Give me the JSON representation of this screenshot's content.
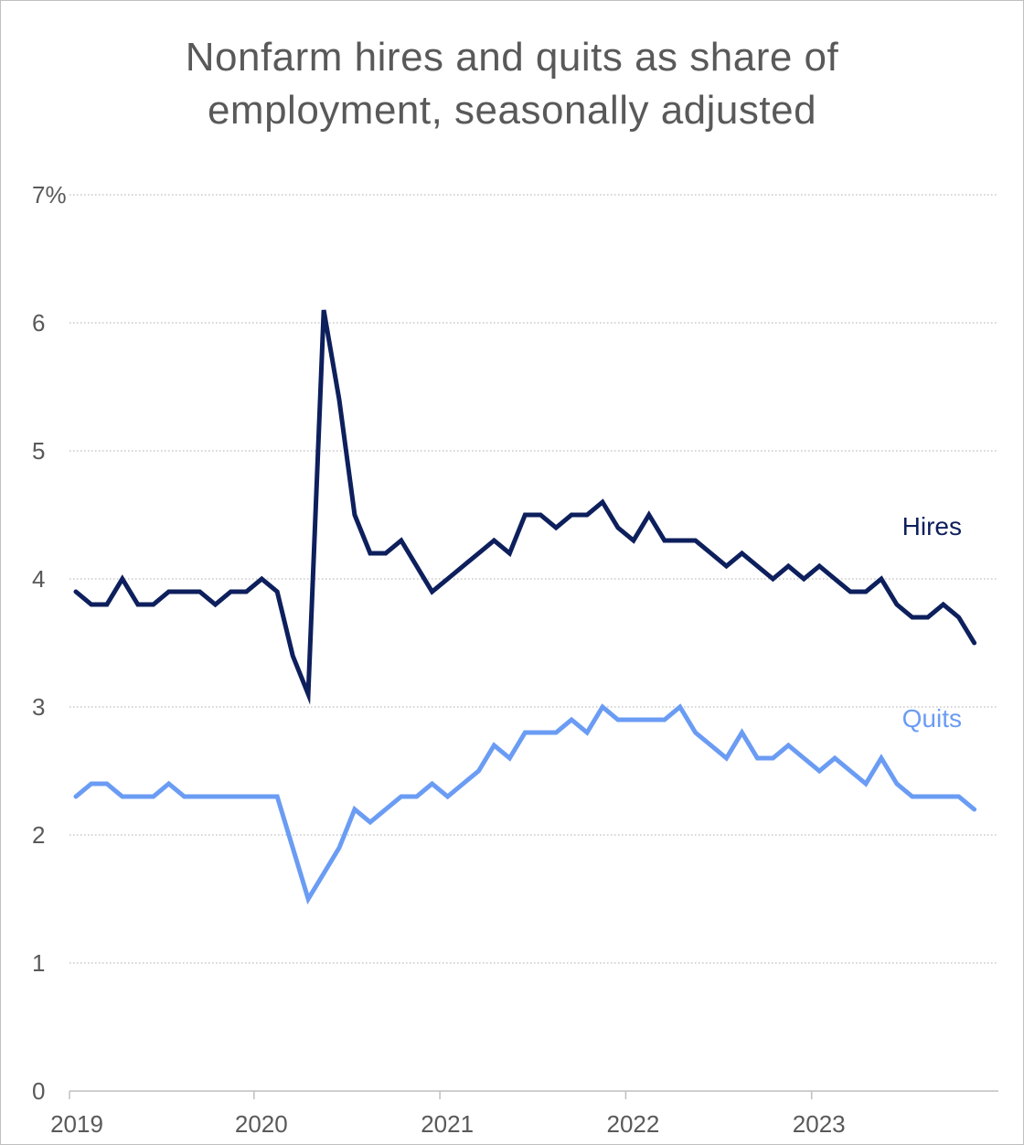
{
  "chart_data": {
    "type": "line",
    "title_lines": [
      "Nonfarm hires and quits as share of",
      "employment, seasonally adjusted"
    ],
    "xlabel": "",
    "ylabel": "",
    "ylim": [
      0,
      7
    ],
    "y_ticks": [
      {
        "value": 7,
        "label": "7%"
      },
      {
        "value": 6,
        "label": "6"
      },
      {
        "value": 5,
        "label": "5"
      },
      {
        "value": 4,
        "label": "4"
      },
      {
        "value": 3,
        "label": "3"
      },
      {
        "value": 2,
        "label": "2"
      },
      {
        "value": 1,
        "label": "1"
      },
      {
        "value": 0,
        "label": "0"
      }
    ],
    "x_ticks": [
      {
        "value": 0,
        "label": "2019"
      },
      {
        "value": 12,
        "label": "2020"
      },
      {
        "value": 24,
        "label": "2021"
      },
      {
        "value": 36,
        "label": "2022"
      },
      {
        "value": 48,
        "label": "2023"
      }
    ],
    "x_range": [
      0,
      59.5
    ],
    "grid": true,
    "series": [
      {
        "name": "Hires",
        "color": "#0d1f5c",
        "label_position": "right-above",
        "values": [
          3.9,
          3.8,
          3.8,
          4.0,
          3.8,
          3.8,
          3.9,
          3.9,
          3.9,
          3.8,
          3.9,
          3.9,
          4.0,
          3.9,
          3.4,
          3.1,
          6.1,
          5.4,
          4.5,
          4.2,
          4.2,
          4.3,
          4.1,
          3.9,
          4.0,
          4.1,
          4.2,
          4.3,
          4.2,
          4.5,
          4.5,
          4.4,
          4.5,
          4.5,
          4.6,
          4.4,
          4.3,
          4.5,
          4.3,
          4.3,
          4.3,
          4.2,
          4.1,
          4.2,
          4.1,
          4.0,
          4.1,
          4.0,
          4.1,
          4.0,
          3.9,
          3.9,
          4.0,
          3.8,
          3.7,
          3.7,
          3.8,
          3.7,
          3.5
        ]
      },
      {
        "name": "Quits",
        "color": "#6b9cf4",
        "label_position": "right-above",
        "values": [
          2.3,
          2.4,
          2.4,
          2.3,
          2.3,
          2.3,
          2.4,
          2.3,
          2.3,
          2.3,
          2.3,
          2.3,
          2.3,
          2.3,
          1.9,
          1.5,
          1.7,
          1.9,
          2.2,
          2.1,
          2.2,
          2.3,
          2.3,
          2.4,
          2.3,
          2.4,
          2.5,
          2.7,
          2.6,
          2.8,
          2.8,
          2.8,
          2.9,
          2.8,
          3.0,
          2.9,
          2.9,
          2.9,
          2.9,
          3.0,
          2.8,
          2.7,
          2.6,
          2.8,
          2.6,
          2.6,
          2.7,
          2.6,
          2.5,
          2.6,
          2.5,
          2.4,
          2.6,
          2.4,
          2.3,
          2.3,
          2.3,
          2.3,
          2.2
        ]
      }
    ]
  }
}
